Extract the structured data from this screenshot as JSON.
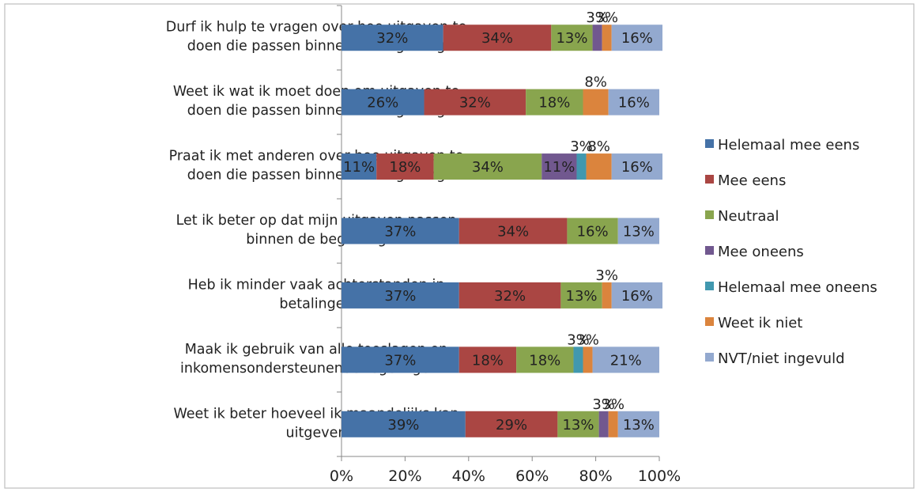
{
  "chart_data": {
    "type": "bar",
    "orientation": "horizontal",
    "stacked": "percent",
    "categories": [
      [
        "Durf ik hulp te vragen over hoe uitgaven te",
        "doen die passen binnen de begroting"
      ],
      [
        "Weet ik wat ik moet doen om uitgaven te",
        "doen die passen binnen de begroting"
      ],
      [
        "Praat ik met anderen over hoe uitgaven te",
        "doen die passen binnen de begroting"
      ],
      [
        "Let ik beter op dat mijn uitgaven passen",
        "binnen de begroting"
      ],
      [
        "Heb ik minder vaak achterstanden in",
        "betalingen"
      ],
      [
        "Maak ik gebruik van alle toeslagen en",
        "inkomensondersteunende regelingen…"
      ],
      [
        "Weet ik beter hoeveel ik maandelijks kan",
        "uitgeven"
      ]
    ],
    "series": [
      {
        "name": "Helemaal mee eens",
        "color": "#4572A7",
        "values": [
          32,
          26,
          11,
          37,
          37,
          37,
          39
        ]
      },
      {
        "name": "Mee eens",
        "color": "#AA4643",
        "values": [
          34,
          32,
          18,
          34,
          32,
          18,
          29
        ]
      },
      {
        "name": "Neutraal",
        "color": "#89A54E",
        "values": [
          13,
          18,
          34,
          16,
          13,
          18,
          13
        ]
      },
      {
        "name": "Mee oneens",
        "color": "#71588F",
        "values": [
          3,
          0,
          11,
          0,
          0,
          0,
          3
        ]
      },
      {
        "name": "Helemaal mee oneens",
        "color": "#4198AF",
        "values": [
          0,
          0,
          3,
          0,
          0,
          3,
          0
        ]
      },
      {
        "name": "Weet ik niet",
        "color": "#DB843D",
        "values": [
          3,
          8,
          8,
          0,
          3,
          3,
          3
        ]
      },
      {
        "name": "NVT/niet ingevuld",
        "color": "#93A9CF",
        "values": [
          16,
          16,
          16,
          13,
          16,
          21,
          13
        ]
      }
    ],
    "x_ticks": [
      "0%",
      "20%",
      "40%",
      "60%",
      "80%",
      "100%"
    ],
    "xlim": [
      0,
      100
    ],
    "legend_position": "right",
    "grid": false
  }
}
